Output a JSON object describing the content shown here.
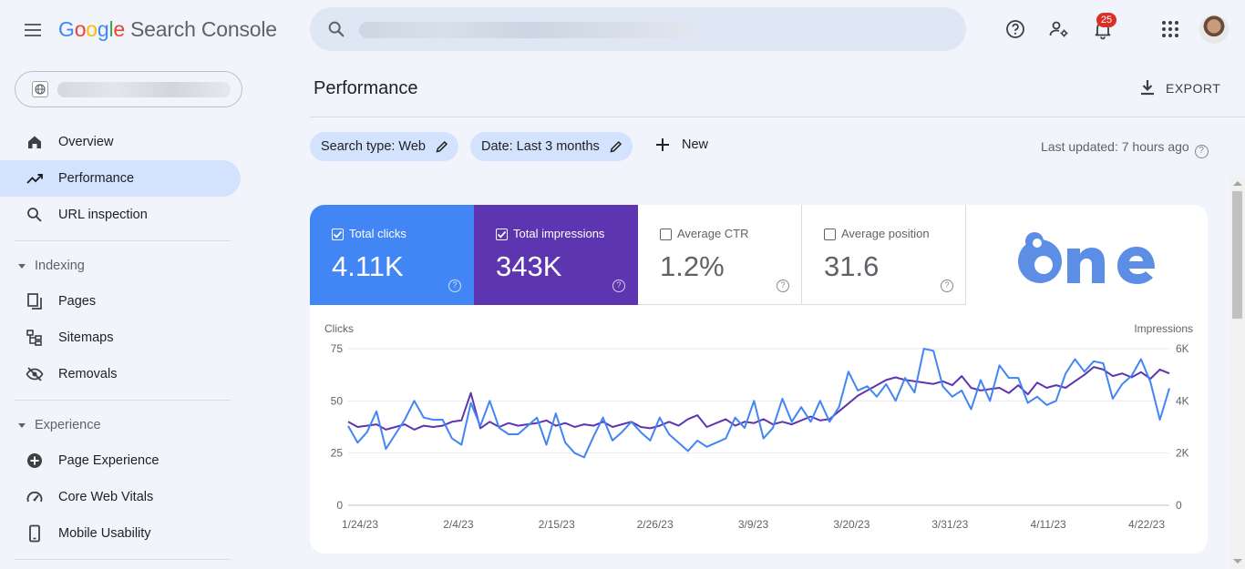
{
  "app": {
    "logo_letters": [
      "G",
      "o",
      "o",
      "g",
      "l",
      "e"
    ],
    "product": "Search Console"
  },
  "topbar": {
    "notification_count": "25"
  },
  "sidebar": {
    "items": [
      {
        "label": "Overview",
        "icon": "home-icon",
        "active": false
      },
      {
        "label": "Performance",
        "icon": "trending-up-icon",
        "active": true
      },
      {
        "label": "URL inspection",
        "icon": "search-icon",
        "active": false
      }
    ],
    "sections": [
      {
        "title": "Indexing",
        "items": [
          {
            "label": "Pages",
            "icon": "pages-icon"
          },
          {
            "label": "Sitemaps",
            "icon": "sitemap-icon"
          },
          {
            "label": "Removals",
            "icon": "eye-off-icon"
          }
        ]
      },
      {
        "title": "Experience",
        "items": [
          {
            "label": "Page Experience",
            "icon": "plus-circle-icon"
          },
          {
            "label": "Core Web Vitals",
            "icon": "gauge-icon"
          },
          {
            "label": "Mobile Usability",
            "icon": "phone-icon"
          }
        ]
      }
    ]
  },
  "main": {
    "title": "Performance",
    "export_label": "EXPORT",
    "filters": [
      {
        "label": "Search type: Web"
      },
      {
        "label": "Date: Last 3 months"
      }
    ],
    "new_label": "New",
    "last_updated": "Last updated: 7 hours ago",
    "metrics": [
      {
        "label": "Total clicks",
        "value": "4.11K",
        "checked": true
      },
      {
        "label": "Total impressions",
        "value": "343K",
        "checked": true
      },
      {
        "label": "Average CTR",
        "value": "1.2%",
        "checked": false
      },
      {
        "label": "Average position",
        "value": "31.6",
        "checked": false
      }
    ],
    "brand_logo_text": "One"
  },
  "colors": {
    "clicks": "#4285f4",
    "impressions": "#5e35b1",
    "active_nav": "#d3e3fd",
    "badge": "#d93025"
  },
  "chart_data": {
    "type": "line",
    "left_axis_label": "Clicks",
    "right_axis_label": "Impressions",
    "left_ticks": [
      "0",
      "25",
      "50",
      "75"
    ],
    "right_ticks": [
      "0",
      "2K",
      "4K",
      "6K"
    ],
    "ylim_left": [
      0,
      75
    ],
    "ylim_right": [
      0,
      6000
    ],
    "x_tick_labels": [
      "1/24/23",
      "2/4/23",
      "2/15/23",
      "2/26/23",
      "3/9/23",
      "3/20/23",
      "3/31/23",
      "4/11/23",
      "4/22/23"
    ],
    "x_start": "1/24/23",
    "grid": true,
    "series": [
      {
        "name": "Clicks",
        "axis": "left",
        "values": [
          38,
          30,
          35,
          45,
          27,
          34,
          41,
          50,
          42,
          41,
          41,
          32,
          29,
          49,
          38,
          50,
          37,
          34,
          34,
          38,
          42,
          29,
          44,
          30,
          25,
          23,
          33,
          42,
          31,
          35,
          40,
          35,
          31,
          42,
          34,
          30,
          26,
          31,
          28,
          30,
          32,
          42,
          37,
          50,
          32,
          37,
          51,
          40,
          47,
          40,
          50,
          40,
          47,
          64,
          55,
          57,
          52,
          58,
          50,
          61,
          54,
          75,
          74,
          57,
          52,
          55,
          46,
          60,
          50,
          67,
          61,
          61,
          49,
          52,
          48,
          50,
          63,
          70,
          64,
          69,
          68,
          51,
          58,
          62,
          70,
          59,
          41,
          56
        ]
      },
      {
        "name": "Impressions",
        "axis": "right",
        "values": [
          3200,
          3000,
          3050,
          3100,
          2900,
          3000,
          3100,
          2900,
          3050,
          3000,
          3050,
          3200,
          3250,
          4300,
          2950,
          3200,
          3000,
          3150,
          3050,
          3100,
          3150,
          3250,
          3050,
          3150,
          3000,
          3100,
          3050,
          3200,
          3000,
          3100,
          3200,
          3000,
          2950,
          3050,
          3200,
          3050,
          3300,
          3450,
          3000,
          3150,
          3300,
          3050,
          3200,
          3150,
          3300,
          3100,
          3200,
          3100,
          3250,
          3400,
          3250,
          3300,
          3600,
          3900,
          4200,
          4400,
          4600,
          4800,
          4900,
          4800,
          4750,
          4700,
          4650,
          4750,
          4600,
          4950,
          4500,
          4400,
          4450,
          4500,
          4300,
          4600,
          4250,
          4700,
          4500,
          4600,
          4500,
          4750,
          5000,
          5300,
          5200,
          4950,
          5050,
          4900,
          5100,
          4850,
          5200,
          5050
        ]
      }
    ]
  }
}
